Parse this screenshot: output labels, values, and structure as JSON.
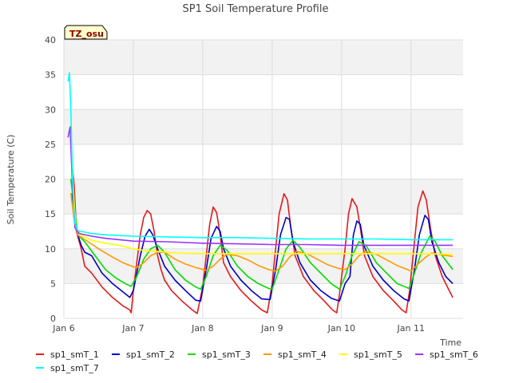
{
  "chart_data": {
    "type": "line",
    "title": "SP1 Soil Temperature Profile",
    "xlabel": "Time",
    "ylabel": "Soil Temperature (C)",
    "ylim": [
      0,
      40
    ],
    "xlim": [
      "2015-01-06 00:00",
      "2015-01-11 18:00"
    ],
    "yticks": [
      0,
      5,
      10,
      15,
      20,
      25,
      30,
      35,
      40
    ],
    "xticks": [
      {
        "label": "Jan 6",
        "day": 6
      },
      {
        "label": "Jan 7",
        "day": 7
      },
      {
        "label": "Jan 8",
        "day": 8
      },
      {
        "label": "Jan 9",
        "day": 9
      },
      {
        "label": "Jan 10",
        "day": 10
      },
      {
        "label": "Jan 11",
        "day": 11
      }
    ],
    "grid": true,
    "grid_bands": true,
    "legend_position": "bottom",
    "annotation": "TZ_osu",
    "x_note": "x values are decimal days of January (e.g. 7.5 = Jan 7 12:00)",
    "series": [
      {
        "name": "sp1_smT_1",
        "color": "#e41a1c",
        "points": [
          [
            6.12,
            22
          ],
          [
            6.15,
            19
          ],
          [
            6.18,
            12.5
          ],
          [
            6.25,
            10
          ],
          [
            6.3,
            7.5
          ],
          [
            6.4,
            6.5
          ],
          [
            6.55,
            4.5
          ],
          [
            6.7,
            3
          ],
          [
            6.85,
            1.8
          ],
          [
            6.95,
            1.2
          ],
          [
            6.97,
            0.8
          ],
          [
            7.0,
            4
          ],
          [
            7.05,
            8
          ],
          [
            7.1,
            12
          ],
          [
            7.15,
            14.5
          ],
          [
            7.2,
            15.5
          ],
          [
            7.25,
            15
          ],
          [
            7.3,
            12.5
          ],
          [
            7.35,
            9
          ],
          [
            7.4,
            7
          ],
          [
            7.45,
            5.5
          ],
          [
            7.55,
            4
          ],
          [
            7.7,
            2.5
          ],
          [
            7.85,
            1.2
          ],
          [
            7.92,
            0.7
          ],
          [
            8.0,
            4.5
          ],
          [
            8.05,
            9
          ],
          [
            8.1,
            13.5
          ],
          [
            8.15,
            16
          ],
          [
            8.2,
            15.2
          ],
          [
            8.25,
            12
          ],
          [
            8.3,
            8
          ],
          [
            8.4,
            6
          ],
          [
            8.55,
            4
          ],
          [
            8.7,
            2.5
          ],
          [
            8.85,
            1.2
          ],
          [
            8.93,
            0.8
          ],
          [
            9.0,
            5
          ],
          [
            9.05,
            10
          ],
          [
            9.1,
            15
          ],
          [
            9.17,
            17.9
          ],
          [
            9.22,
            17
          ],
          [
            9.27,
            13
          ],
          [
            9.33,
            9
          ],
          [
            9.45,
            6
          ],
          [
            9.6,
            4
          ],
          [
            9.75,
            2.5
          ],
          [
            9.87,
            1.2
          ],
          [
            9.93,
            0.8
          ],
          [
            9.97,
            3.5
          ],
          [
            10.05,
            10
          ],
          [
            10.1,
            15
          ],
          [
            10.15,
            17.2
          ],
          [
            10.22,
            16
          ],
          [
            10.27,
            13
          ],
          [
            10.33,
            9
          ],
          [
            10.45,
            6
          ],
          [
            10.6,
            4
          ],
          [
            10.75,
            2.5
          ],
          [
            10.87,
            1.2
          ],
          [
            10.93,
            0.8
          ],
          [
            10.98,
            4
          ],
          [
            11.05,
            11
          ],
          [
            11.1,
            16
          ],
          [
            11.17,
            18.3
          ],
          [
            11.22,
            17
          ],
          [
            11.28,
            13
          ],
          [
            11.35,
            9
          ],
          [
            11.45,
            6
          ],
          [
            11.55,
            4
          ],
          [
            11.6,
            3
          ]
        ]
      },
      {
        "name": "sp1_smT_2",
        "color": "#0000cc",
        "points": [
          [
            6.12,
            18
          ],
          [
            6.15,
            14
          ],
          [
            6.2,
            12
          ],
          [
            6.25,
            10.5
          ],
          [
            6.3,
            9.5
          ],
          [
            6.4,
            9
          ],
          [
            6.55,
            6.5
          ],
          [
            6.7,
            5
          ],
          [
            6.85,
            3.8
          ],
          [
            6.95,
            3
          ],
          [
            7.0,
            4
          ],
          [
            7.1,
            9
          ],
          [
            7.17,
            11.8
          ],
          [
            7.23,
            12.8
          ],
          [
            7.28,
            12
          ],
          [
            7.35,
            10
          ],
          [
            7.45,
            7.5
          ],
          [
            7.6,
            5.5
          ],
          [
            7.75,
            4
          ],
          [
            7.9,
            2.6
          ],
          [
            7.97,
            2.5
          ],
          [
            8.05,
            7
          ],
          [
            8.12,
            11.5
          ],
          [
            8.2,
            13.2
          ],
          [
            8.25,
            12.5
          ],
          [
            8.3,
            10
          ],
          [
            8.4,
            7.5
          ],
          [
            8.55,
            5.5
          ],
          [
            8.7,
            4
          ],
          [
            8.85,
            2.8
          ],
          [
            8.97,
            2.7
          ],
          [
            9.05,
            7
          ],
          [
            9.12,
            12
          ],
          [
            9.2,
            14.5
          ],
          [
            9.25,
            14.2
          ],
          [
            9.3,
            11
          ],
          [
            9.4,
            8
          ],
          [
            9.55,
            5.5
          ],
          [
            9.7,
            4
          ],
          [
            9.85,
            2.9
          ],
          [
            9.97,
            2.5
          ],
          [
            10.05,
            5
          ],
          [
            10.12,
            6
          ],
          [
            10.17,
            12
          ],
          [
            10.22,
            14
          ],
          [
            10.27,
            13.5
          ],
          [
            10.32,
            10.5
          ],
          [
            10.45,
            7.5
          ],
          [
            10.6,
            5.5
          ],
          [
            10.75,
            4
          ],
          [
            10.9,
            2.8
          ],
          [
            10.97,
            2.5
          ],
          [
            11.05,
            7
          ],
          [
            11.12,
            12
          ],
          [
            11.2,
            14.8
          ],
          [
            11.25,
            14.2
          ],
          [
            11.3,
            11
          ],
          [
            11.4,
            8
          ],
          [
            11.5,
            6
          ],
          [
            11.6,
            5
          ]
        ]
      },
      {
        "name": "sp1_smT_3",
        "color": "#00dd00",
        "points": [
          [
            6.1,
            20
          ],
          [
            6.15,
            16
          ],
          [
            6.2,
            12
          ],
          [
            6.3,
            11
          ],
          [
            6.45,
            9
          ],
          [
            6.6,
            7
          ],
          [
            6.75,
            5.8
          ],
          [
            6.9,
            4.9
          ],
          [
            6.97,
            4.6
          ],
          [
            7.05,
            6
          ],
          [
            7.15,
            8.5
          ],
          [
            7.25,
            10
          ],
          [
            7.35,
            10.5
          ],
          [
            7.45,
            9.5
          ],
          [
            7.6,
            7
          ],
          [
            7.75,
            5.5
          ],
          [
            7.9,
            4.5
          ],
          [
            7.97,
            4.2
          ],
          [
            8.05,
            6
          ],
          [
            8.15,
            9
          ],
          [
            8.25,
            10.5
          ],
          [
            8.35,
            9.8
          ],
          [
            8.5,
            7.5
          ],
          [
            8.65,
            6
          ],
          [
            8.8,
            5
          ],
          [
            8.95,
            4.3
          ],
          [
            9.0,
            4.2
          ],
          [
            9.1,
            7
          ],
          [
            9.2,
            10
          ],
          [
            9.3,
            11.2
          ],
          [
            9.4,
            10.2
          ],
          [
            9.55,
            8
          ],
          [
            9.7,
            6.5
          ],
          [
            9.85,
            5
          ],
          [
            9.97,
            4.2
          ],
          [
            10.05,
            6
          ],
          [
            10.15,
            9
          ],
          [
            10.25,
            11
          ],
          [
            10.35,
            10.5
          ],
          [
            10.5,
            8
          ],
          [
            10.65,
            6.5
          ],
          [
            10.8,
            5
          ],
          [
            10.97,
            4.3
          ],
          [
            11.05,
            6.5
          ],
          [
            11.15,
            9.5
          ],
          [
            11.27,
            11.8
          ],
          [
            11.35,
            11
          ],
          [
            11.45,
            9
          ],
          [
            11.6,
            7
          ]
        ]
      },
      {
        "name": "sp1_smT_4",
        "color": "#ff9900",
        "points": [
          [
            6.1,
            18
          ],
          [
            6.15,
            14
          ],
          [
            6.2,
            12
          ],
          [
            6.35,
            11
          ],
          [
            6.5,
            10
          ],
          [
            6.7,
            8.8
          ],
          [
            6.85,
            8
          ],
          [
            7.0,
            7.4
          ],
          [
            7.05,
            7.3
          ],
          [
            7.15,
            8
          ],
          [
            7.25,
            9
          ],
          [
            7.35,
            9.5
          ],
          [
            7.45,
            9.5
          ],
          [
            7.6,
            8.5
          ],
          [
            7.75,
            7.8
          ],
          [
            7.9,
            7.3
          ],
          [
            8.05,
            6.9
          ],
          [
            8.15,
            7.5
          ],
          [
            8.25,
            8.5
          ],
          [
            8.35,
            9.2
          ],
          [
            8.5,
            9
          ],
          [
            8.65,
            8.4
          ],
          [
            8.8,
            7.6
          ],
          [
            8.95,
            7
          ],
          [
            9.05,
            6.8
          ],
          [
            9.15,
            7.5
          ],
          [
            9.25,
            8.8
          ],
          [
            9.35,
            9.6
          ],
          [
            9.5,
            9.3
          ],
          [
            9.65,
            8.5
          ],
          [
            9.8,
            7.7
          ],
          [
            9.95,
            7.2
          ],
          [
            10.05,
            7
          ],
          [
            10.15,
            7.8
          ],
          [
            10.25,
            9
          ],
          [
            10.35,
            9.6
          ],
          [
            10.5,
            9.2
          ],
          [
            10.65,
            8.4
          ],
          [
            10.8,
            7.6
          ],
          [
            10.95,
            7
          ],
          [
            11.0,
            6.8
          ],
          [
            11.1,
            7.8
          ],
          [
            11.2,
            8.7
          ],
          [
            11.3,
            9.4
          ],
          [
            11.45,
            9.1
          ],
          [
            11.6,
            8.9
          ]
        ]
      },
      {
        "name": "sp1_smT_5",
        "color": "#ffff00",
        "points": [
          [
            6.1,
            28
          ],
          [
            6.13,
            20
          ],
          [
            6.17,
            13
          ],
          [
            6.25,
            12
          ],
          [
            6.4,
            11.2
          ],
          [
            6.6,
            10.8
          ],
          [
            6.8,
            10.5
          ],
          [
            7.0,
            10
          ],
          [
            7.2,
            9.7
          ],
          [
            7.4,
            9.6
          ],
          [
            7.6,
            9.4
          ],
          [
            8.0,
            9.3
          ],
          [
            8.5,
            9.3
          ],
          [
            9.0,
            9.3
          ],
          [
            9.5,
            9.3
          ],
          [
            10.0,
            9.3
          ],
          [
            10.5,
            9.3
          ],
          [
            11.0,
            9.3
          ],
          [
            11.6,
            9.2
          ]
        ]
      },
      {
        "name": "sp1_smT_6",
        "color": "#9933ff",
        "points": [
          [
            6.06,
            26
          ],
          [
            6.09,
            27.5
          ],
          [
            6.12,
            20
          ],
          [
            6.16,
            13
          ],
          [
            6.22,
            12.2
          ],
          [
            6.4,
            11.8
          ],
          [
            6.6,
            11.5
          ],
          [
            6.8,
            11.3
          ],
          [
            7.0,
            11.1
          ],
          [
            7.5,
            11
          ],
          [
            8.0,
            10.8
          ],
          [
            8.5,
            10.7
          ],
          [
            9.0,
            10.6
          ],
          [
            9.5,
            10.6
          ],
          [
            10.0,
            10.5
          ],
          [
            10.5,
            10.5
          ],
          [
            11.0,
            10.5
          ],
          [
            11.6,
            10.5
          ]
        ]
      },
      {
        "name": "sp1_smT_7",
        "color": "#00ffff",
        "points": [
          [
            6.06,
            34
          ],
          [
            6.08,
            35.3
          ],
          [
            6.1,
            30
          ],
          [
            6.12,
            22
          ],
          [
            6.15,
            14
          ],
          [
            6.2,
            12.6
          ],
          [
            6.4,
            12.2
          ],
          [
            6.6,
            12
          ],
          [
            6.8,
            11.9
          ],
          [
            7.0,
            11.8
          ],
          [
            7.5,
            11.7
          ],
          [
            8.0,
            11.6
          ],
          [
            8.5,
            11.6
          ],
          [
            9.0,
            11.5
          ],
          [
            9.5,
            11.4
          ],
          [
            10.0,
            11.4
          ],
          [
            10.5,
            11.4
          ],
          [
            11.0,
            11.3
          ],
          [
            11.6,
            11.3
          ]
        ]
      }
    ]
  }
}
